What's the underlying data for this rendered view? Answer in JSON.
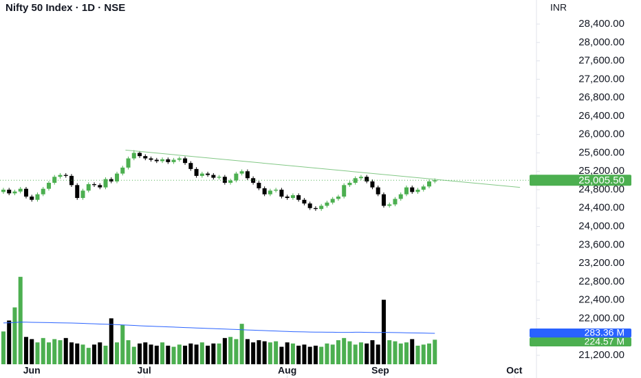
{
  "chart_data": {
    "type": "candlestick",
    "title": "Nifty 50 Index · 1D · NSE",
    "currency": "INR",
    "x": [
      0,
      1,
      2,
      3,
      4,
      5,
      6,
      7,
      8,
      9,
      10,
      11,
      12,
      13,
      14,
      15,
      16,
      17,
      18,
      19,
      20,
      21,
      22,
      23,
      24,
      25,
      26,
      27,
      28,
      29,
      30,
      31,
      32,
      33,
      34,
      35,
      36,
      37,
      38,
      39,
      40,
      41,
      42,
      43,
      44,
      45,
      46,
      47,
      48,
      49,
      50,
      51,
      52,
      53,
      54,
      55,
      56,
      57,
      58,
      59,
      60,
      61,
      62,
      63,
      64,
      65,
      66,
      67,
      68,
      69,
      70,
      71,
      72,
      73,
      74,
      75,
      76
    ],
    "open": [
      24750,
      24800,
      24720,
      24760,
      24820,
      24650,
      24580,
      24700,
      24820,
      24950,
      25080,
      25120,
      25100,
      24900,
      24620,
      24780,
      24920,
      24900,
      24850,
      25030,
      24980,
      25150,
      25280,
      25480,
      25600,
      25530,
      25480,
      25450,
      25420,
      25460,
      25400,
      25450,
      25480,
      25380,
      25250,
      25100,
      25150,
      25120,
      25060,
      25080,
      24950,
      25000,
      25150,
      25200,
      25050,
      24950,
      24830,
      24700,
      24780,
      24800,
      24650,
      24620,
      24680,
      24580,
      24500,
      24400,
      24380,
      24450,
      24520,
      24600,
      24650,
      24900,
      24950,
      25050,
      25080,
      24980,
      24850,
      24700,
      24450,
      24480,
      24600,
      24700,
      24850,
      24750,
      24800,
      24870,
      24980
    ],
    "high": [
      24840,
      24840,
      24800,
      24860,
      24860,
      24690,
      24740,
      24860,
      24990,
      25120,
      25160,
      25160,
      25140,
      24940,
      24820,
      24960,
      24960,
      24940,
      25070,
      25070,
      25190,
      25320,
      25520,
      25660,
      25640,
      25570,
      25520,
      25490,
      25500,
      25500,
      25490,
      25520,
      25520,
      25420,
      25290,
      25190,
      25190,
      25160,
      25120,
      25120,
      25040,
      25190,
      25240,
      25240,
      25090,
      24990,
      24870,
      24820,
      24840,
      24840,
      24690,
      24720,
      24720,
      24620,
      24540,
      24440,
      24490,
      24560,
      24640,
      24690,
      24940,
      24990,
      25090,
      25120,
      25120,
      25020,
      24890,
      24740,
      24520,
      24640,
      24740,
      24890,
      24890,
      24840,
      24910,
      25020,
      25045
    ],
    "low": [
      24710,
      24680,
      24680,
      24720,
      24610,
      24540,
      24540,
      24660,
      24780,
      24910,
      25040,
      25060,
      24860,
      24580,
      24580,
      24740,
      24860,
      24810,
      24810,
      24940,
      24940,
      25110,
      25240,
      25440,
      25490,
      25440,
      25410,
      25380,
      25380,
      25360,
      25360,
      25410,
      25340,
      25210,
      25060,
      25060,
      25080,
      25020,
      25020,
      24910,
      24910,
      24960,
      25110,
      25010,
      24910,
      24790,
      24660,
      24660,
      24740,
      24610,
      24580,
      24580,
      24540,
      24460,
      24360,
      24340,
      24340,
      24410,
      24480,
      24560,
      24610,
      24860,
      24910,
      25010,
      24940,
      24810,
      24660,
      24410,
      24410,
      24440,
      24560,
      24660,
      24710,
      24710,
      24760,
      24830,
      24940
    ],
    "close": [
      24800,
      24720,
      24760,
      24820,
      24650,
      24580,
      24700,
      24820,
      24950,
      25080,
      25120,
      25100,
      24900,
      24620,
      24780,
      24920,
      24900,
      24850,
      25030,
      24980,
      25150,
      25280,
      25480,
      25600,
      25530,
      25480,
      25450,
      25420,
      25460,
      25400,
      25450,
      25480,
      25380,
      25250,
      25100,
      25150,
      25120,
      25060,
      25080,
      24950,
      25000,
      25150,
      25200,
      25050,
      24950,
      24830,
      24700,
      24780,
      24800,
      24650,
      24620,
      24680,
      24580,
      24500,
      24400,
      24380,
      24450,
      24520,
      24600,
      24650,
      24900,
      24950,
      25050,
      25080,
      24980,
      24850,
      24700,
      24450,
      24480,
      24600,
      24700,
      24850,
      24750,
      24800,
      24870,
      24980,
      25005.5
    ],
    "volume": [
      300,
      400,
      520,
      800,
      250,
      230,
      200,
      240,
      200,
      230,
      220,
      240,
      200,
      190,
      180,
      150,
      180,
      200,
      170,
      420,
      200,
      360,
      220,
      160,
      190,
      200,
      180,
      170,
      200,
      170,
      160,
      180,
      170,
      190,
      180,
      200,
      170,
      190,
      190,
      240,
      250,
      230,
      370,
      230,
      200,
      220,
      210,
      200,
      210,
      160,
      200,
      190,
      170,
      180,
      160,
      170,
      160,
      190,
      180,
      220,
      240,
      210,
      180,
      200,
      190,
      220,
      180,
      590,
      220,
      210,
      190,
      200,
      230,
      170,
      180,
      190,
      224.57
    ],
    "volume_ma": [
      378,
      380,
      382,
      386,
      385,
      384,
      383,
      382,
      381,
      380,
      379,
      378,
      377,
      376,
      374,
      372,
      370,
      368,
      366,
      365,
      362,
      360,
      358,
      355,
      352,
      350,
      348,
      346,
      344,
      342,
      340,
      338,
      336,
      334,
      332,
      330,
      328,
      326,
      324,
      322,
      320,
      318,
      316,
      314,
      312,
      310,
      308,
      306,
      304,
      302,
      300,
      298,
      297,
      296,
      295,
      294,
      294,
      293,
      293,
      292,
      292,
      292,
      293,
      293,
      292,
      291,
      290,
      292,
      291,
      290,
      289,
      288,
      287,
      286,
      285,
      284,
      283.36
    ],
    "up_color": "#4caf50",
    "down_color": "#000000",
    "ma_color": "#2962ff",
    "trend_color": "#81c784",
    "trendline": {
      "x": [
        21.5,
        91
      ],
      "y": [
        25660,
        24850
      ]
    },
    "last_price": {
      "value": 25005.5,
      "label": "25,005.50"
    },
    "volume_ma_label": {
      "value": 283.36,
      "label": "283.36 M"
    },
    "volume_label": {
      "value": 224.57,
      "label": "224.57 M"
    },
    "xlim": [
      -0.6,
      93.9
    ],
    "xticks": [
      {
        "value": 5,
        "label": "Jun"
      },
      {
        "value": 24.8,
        "label": "Jul"
      },
      {
        "value": 50,
        "label": "Aug"
      },
      {
        "value": 66.4,
        "label": "Sep"
      },
      {
        "value": 90,
        "label": "Oct"
      }
    ],
    "ylim": [
      20707,
      28923
    ],
    "yticks": [
      {
        "value": 21200,
        "label": "21,200.00"
      },
      {
        "value": 21600,
        "label": "21,600.00"
      },
      {
        "value": 22000,
        "label": "22,000.00"
      },
      {
        "value": 22400,
        "label": "22,400.00"
      },
      {
        "value": 22800,
        "label": "22,800.00"
      },
      {
        "value": 23200,
        "label": "23,200.00"
      },
      {
        "value": 23600,
        "label": "23,600.00"
      },
      {
        "value": 24000,
        "label": "24,000.00"
      },
      {
        "value": 24400,
        "label": "24,400.00"
      },
      {
        "value": 24800,
        "label": "24,800.00"
      },
      {
        "value": 25200,
        "label": "25,200.00"
      },
      {
        "value": 25600,
        "label": "25,600.00"
      },
      {
        "value": 26000,
        "label": "26,000.00"
      },
      {
        "value": 26400,
        "label": "26,400.00"
      },
      {
        "value": 26800,
        "label": "26,800.00"
      },
      {
        "value": 27200,
        "label": "27,200.00"
      },
      {
        "value": 27600,
        "label": "27,600.00"
      },
      {
        "value": 28000,
        "label": "28,000.00"
      },
      {
        "value": 28400,
        "label": "28,400.00"
      }
    ],
    "volume_ylim": [
      0,
      3333
    ]
  }
}
